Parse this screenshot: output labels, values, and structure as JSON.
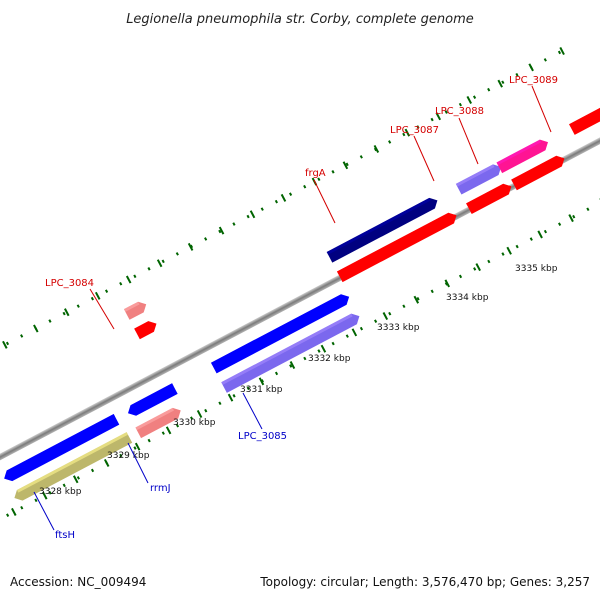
{
  "title": "Legionella pneumophila str. Corby, complete genome",
  "footer": {
    "accession": "Accession: NC_009494",
    "summary": "Topology: circular; Length: 3,576,470 bp; Genes: 3,257"
  },
  "ticks": [
    "3328 kbp",
    "3329 kbp",
    "3330 kbp",
    "3331 kbp",
    "3332 kbp",
    "3333 kbp",
    "3334 kbp",
    "3335 kbp"
  ],
  "gene_labels": {
    "LPC_3084": "LPC_3084",
    "LPC_3087": "LPC_3087",
    "LPC_3088": "LPC_3088",
    "LPC_3089": "LPC_3089",
    "frgA": "frgA",
    "LPC_3085": "LPC_3085",
    "rrmJ": "rrmJ",
    "ftsH": "ftsH"
  },
  "colors": {
    "red": "#ff0000",
    "light_red": "#f08080",
    "navy": "#000080",
    "blue": "#0000ff",
    "slate": "#7b68ee",
    "olive": "#bdb76b",
    "magenta": "#ff1493",
    "backbone": "#999999",
    "tick_dots": "#006400"
  }
}
